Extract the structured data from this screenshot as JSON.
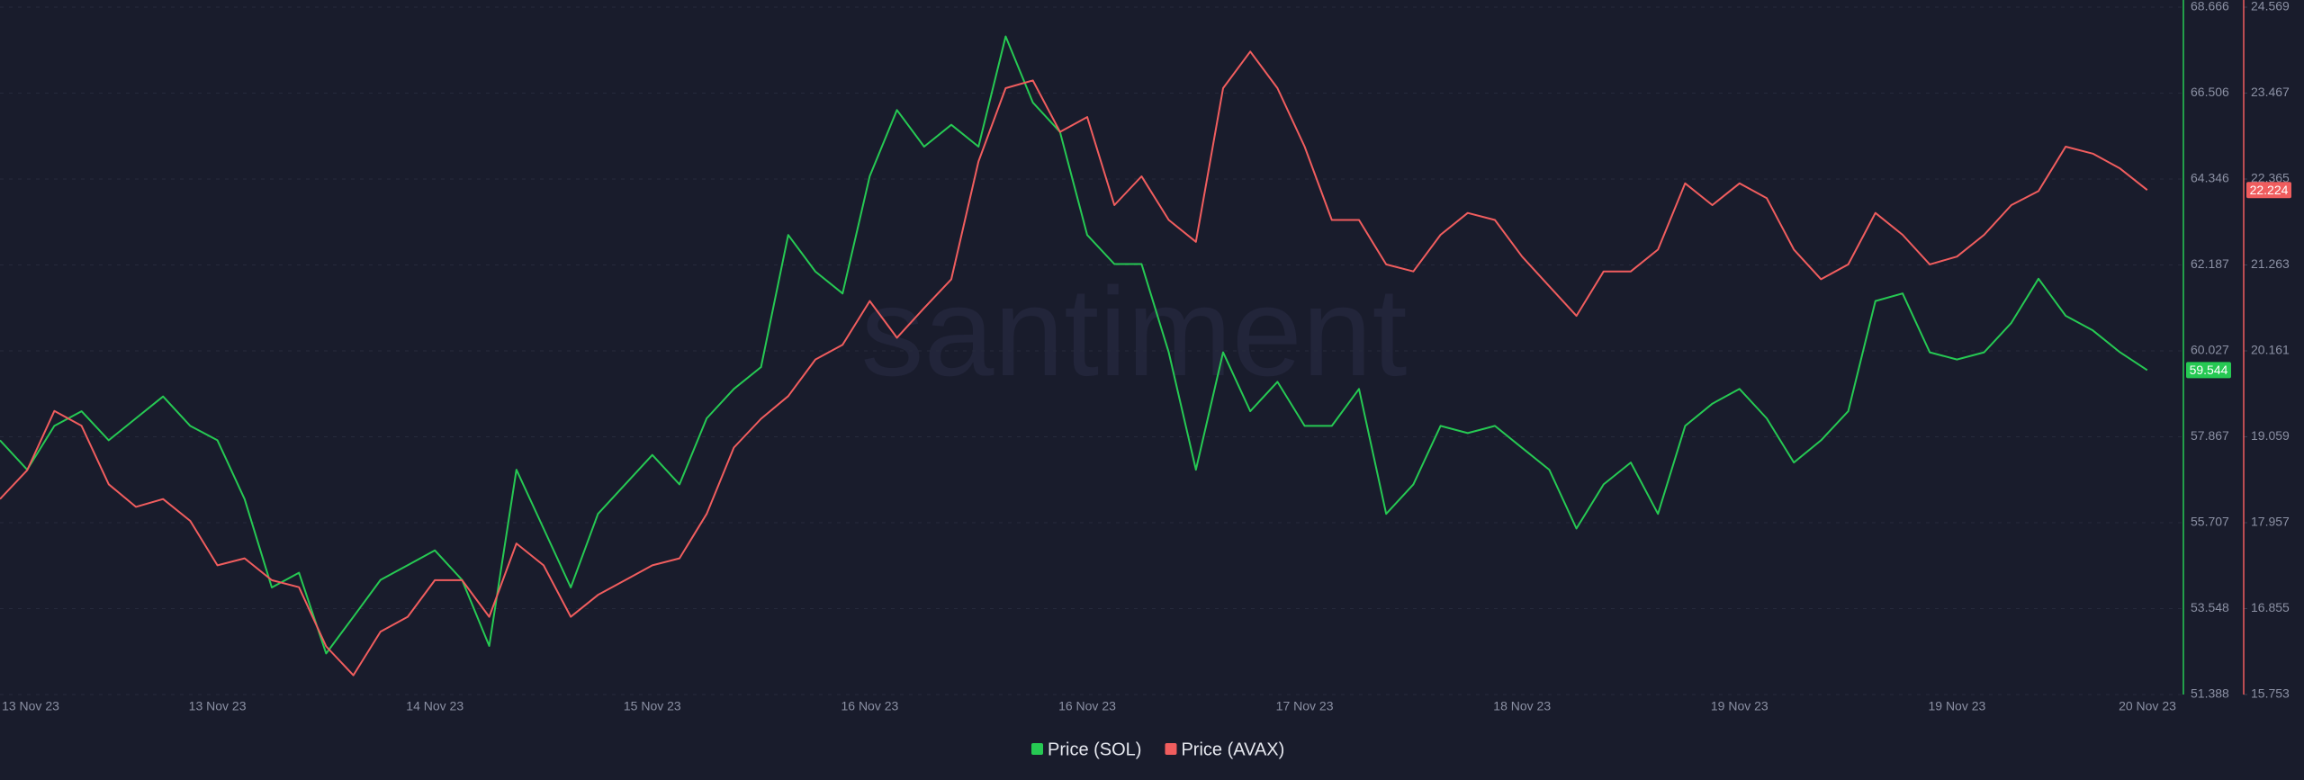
{
  "chart_data": {
    "type": "line",
    "watermark": "santiment",
    "categories": [
      "13 Nov 23",
      null,
      null,
      null,
      null,
      null,
      null,
      null,
      "13 Nov 23",
      null,
      null,
      null,
      null,
      null,
      null,
      null,
      "14 Nov 23",
      null,
      null,
      null,
      null,
      null,
      null,
      null,
      "15 Nov 23",
      null,
      null,
      null,
      null,
      null,
      null,
      null,
      "16 Nov 23",
      null,
      null,
      null,
      null,
      null,
      null,
      null,
      "16 Nov 23",
      null,
      null,
      null,
      null,
      null,
      null,
      null,
      "17 Nov 23",
      null,
      null,
      null,
      null,
      null,
      null,
      null,
      "18 Nov 23",
      null,
      null,
      null,
      null,
      null,
      null,
      null,
      "19 Nov 23",
      null,
      null,
      null,
      null,
      null,
      null,
      null,
      "19 Nov 23",
      null,
      null,
      null,
      null,
      null,
      null,
      null,
      "20 Nov 23"
    ],
    "series": [
      {
        "name": "Price (SOL)",
        "color": "#26c953",
        "axis": "y",
        "last_value": 59.544,
        "values": [
          57.78,
          57.04,
          58.14,
          58.51,
          57.78,
          58.33,
          58.88,
          58.14,
          57.78,
          56.3,
          54.08,
          54.45,
          52.42,
          53.34,
          54.27,
          54.64,
          55.01,
          54.27,
          52.61,
          57.04,
          55.56,
          54.08,
          55.93,
          56.67,
          57.41,
          56.67,
          58.33,
          59.07,
          59.62,
          62.94,
          62.02,
          61.47,
          64.42,
          66.08,
          65.16,
          65.71,
          65.16,
          67.93,
          66.27,
          65.53,
          62.94,
          62.21,
          62.21,
          59.99,
          57.04,
          59.99,
          58.51,
          59.25,
          58.14,
          58.14,
          59.07,
          55.93,
          56.67,
          58.14,
          57.96,
          58.14,
          57.59,
          57.04,
          55.56,
          56.67,
          57.22,
          55.93,
          58.14,
          58.7,
          59.07,
          58.33,
          57.22,
          57.78,
          58.51,
          61.28,
          61.47,
          59.99,
          59.81,
          59.99,
          60.73,
          61.84,
          60.91,
          60.54,
          59.99,
          59.544,
          null
        ]
      },
      {
        "name": "Price (AVAX)",
        "color": "#f05d5e",
        "axis": "y2",
        "last_value": 22.224,
        "values": [
          18.26,
          18.63,
          19.39,
          19.2,
          18.45,
          18.16,
          18.26,
          17.98,
          17.41,
          17.5,
          17.22,
          17.13,
          16.37,
          16.0,
          16.56,
          16.75,
          17.22,
          17.22,
          16.75,
          17.69,
          17.41,
          16.75,
          17.03,
          17.22,
          17.41,
          17.5,
          18.07,
          18.92,
          19.29,
          19.58,
          20.05,
          20.24,
          20.8,
          20.33,
          20.71,
          21.08,
          22.59,
          23.53,
          23.63,
          22.97,
          23.16,
          22.03,
          22.4,
          21.84,
          21.56,
          23.53,
          24.0,
          23.53,
          22.78,
          21.84,
          21.84,
          21.27,
          21.18,
          21.65,
          21.93,
          21.84,
          21.37,
          20.99,
          20.61,
          21.18,
          21.18,
          21.46,
          22.31,
          22.03,
          22.31,
          22.12,
          21.46,
          21.08,
          21.27,
          21.93,
          21.65,
          21.27,
          21.37,
          21.65,
          22.03,
          22.21,
          22.78,
          22.69,
          22.5,
          22.224,
          null
        ]
      }
    ],
    "ylim": [
      51.388,
      68.666
    ],
    "yticks": [
      51.388,
      53.548,
      55.707,
      57.867,
      60.027,
      62.187,
      64.346,
      66.506,
      68.666
    ],
    "y2lim": [
      15.753,
      24.569
    ],
    "y2ticks": [
      15.753,
      16.855,
      17.957,
      19.059,
      20.161,
      21.263,
      22.365,
      23.467,
      24.569
    ],
    "grid": true
  }
}
